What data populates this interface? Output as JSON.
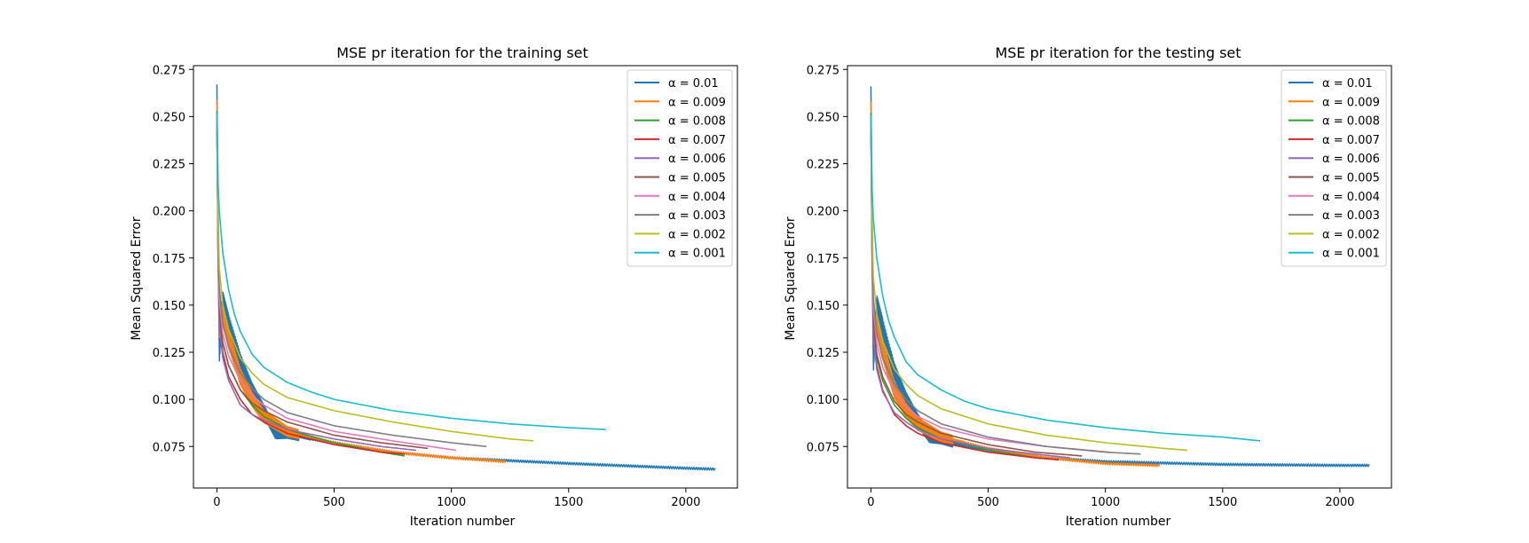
{
  "chart_data": [
    {
      "type": "line",
      "title": "MSE pr iteration for the training set",
      "xlabel": "Iteration number",
      "ylabel": "Mean Squared Error",
      "xlim": [
        -100,
        2220
      ],
      "ylim": [
        0.053,
        0.277
      ],
      "xticks": [
        0,
        500,
        1000,
        1500,
        2000
      ],
      "yticks": [
        0.075,
        0.1,
        0.125,
        0.15,
        0.175,
        0.2,
        0.225,
        0.25,
        0.275
      ],
      "grid": false,
      "legend_position": "top-right",
      "series": [
        {
          "name": "α = 0.01",
          "color": "#1f77b4",
          "oscillating": true,
          "x": [
            0,
            5,
            10,
            25,
            50,
            75,
            100,
            150,
            200,
            250,
            300,
            400,
            500,
            750,
            1000,
            1500,
            2000,
            2125
          ],
          "y": [
            0.267,
            0.205,
            0.124,
            0.152,
            0.14,
            0.13,
            0.12,
            0.105,
            0.094,
            0.082,
            0.082,
            0.079,
            0.077,
            0.072,
            0.069,
            0.066,
            0.0635,
            0.063
          ]
        },
        {
          "name": "α = 0.009",
          "color": "#ff7f0e",
          "oscillating": true,
          "x": [
            0,
            5,
            10,
            25,
            50,
            100,
            150,
            200,
            300,
            500,
            750,
            1000,
            1230
          ],
          "y": [
            0.259,
            0.19,
            0.138,
            0.145,
            0.132,
            0.112,
            0.1,
            0.091,
            0.083,
            0.077,
            0.072,
            0.069,
            0.067
          ]
        },
        {
          "name": "α = 0.008",
          "color": "#2ca02c",
          "oscillating": false,
          "x": [
            0,
            5,
            10,
            25,
            50,
            100,
            150,
            200,
            300,
            500,
            700,
            800
          ],
          "y": [
            0.253,
            0.18,
            0.145,
            0.13,
            0.118,
            0.105,
            0.097,
            0.091,
            0.084,
            0.077,
            0.072,
            0.07
          ]
        },
        {
          "name": "α = 0.007",
          "color": "#d62728",
          "oscillating": false,
          "x": [
            0,
            5,
            10,
            25,
            50,
            100,
            150,
            200,
            300,
            500,
            700,
            800
          ],
          "y": [
            0.25,
            0.178,
            0.142,
            0.125,
            0.112,
            0.1,
            0.092,
            0.088,
            0.082,
            0.076,
            0.072,
            0.071
          ]
        },
        {
          "name": "α = 0.006",
          "color": "#9467bd",
          "oscillating": false,
          "x": [
            0,
            5,
            10,
            25,
            50,
            100,
            150,
            200,
            300,
            500,
            700,
            850
          ],
          "y": [
            0.248,
            0.176,
            0.14,
            0.122,
            0.11,
            0.097,
            0.092,
            0.089,
            0.084,
            0.079,
            0.075,
            0.073
          ]
        },
        {
          "name": "α = 0.005",
          "color": "#8c564b",
          "oscillating": false,
          "x": [
            0,
            5,
            10,
            25,
            50,
            100,
            150,
            200,
            300,
            500,
            700,
            900
          ],
          "y": [
            0.248,
            0.182,
            0.147,
            0.13,
            0.118,
            0.105,
            0.098,
            0.094,
            0.088,
            0.081,
            0.077,
            0.074
          ]
        },
        {
          "name": "α = 0.004",
          "color": "#e377c2",
          "oscillating": false,
          "x": [
            0,
            5,
            10,
            25,
            50,
            100,
            150,
            200,
            300,
            500,
            750,
            1020
          ],
          "y": [
            0.249,
            0.186,
            0.153,
            0.135,
            0.123,
            0.11,
            0.102,
            0.097,
            0.09,
            0.083,
            0.078,
            0.073
          ]
        },
        {
          "name": "α = 0.003",
          "color": "#7f7f7f",
          "oscillating": false,
          "x": [
            0,
            5,
            10,
            25,
            50,
            100,
            150,
            200,
            300,
            500,
            750,
            1000,
            1150
          ],
          "y": [
            0.25,
            0.19,
            0.16,
            0.14,
            0.128,
            0.114,
            0.106,
            0.1,
            0.093,
            0.086,
            0.081,
            0.077,
            0.075
          ]
        },
        {
          "name": "α = 0.002",
          "color": "#bcbd22",
          "oscillating": false,
          "x": [
            0,
            5,
            10,
            25,
            50,
            100,
            150,
            200,
            300,
            500,
            750,
            1000,
            1250,
            1350
          ],
          "y": [
            0.251,
            0.198,
            0.17,
            0.15,
            0.137,
            0.122,
            0.114,
            0.108,
            0.101,
            0.094,
            0.088,
            0.083,
            0.079,
            0.078
          ]
        },
        {
          "name": "α = 0.001",
          "color": "#17becf",
          "oscillating": false,
          "x": [
            0,
            5,
            10,
            25,
            50,
            75,
            100,
            150,
            200,
            300,
            400,
            500,
            750,
            1000,
            1250,
            1500,
            1660
          ],
          "y": [
            0.252,
            0.215,
            0.2,
            0.178,
            0.158,
            0.145,
            0.136,
            0.124,
            0.117,
            0.109,
            0.104,
            0.1,
            0.094,
            0.09,
            0.087,
            0.085,
            0.084
          ]
        }
      ]
    },
    {
      "type": "line",
      "title": "MSE pr iteration for the testing set",
      "xlabel": "Iteration number",
      "ylabel": "Mean Squared Error",
      "xlim": [
        -100,
        2220
      ],
      "ylim": [
        0.053,
        0.277
      ],
      "xticks": [
        0,
        500,
        1000,
        1500,
        2000
      ],
      "yticks": [
        0.075,
        0.1,
        0.125,
        0.15,
        0.175,
        0.2,
        0.225,
        0.25,
        0.275
      ],
      "grid": false,
      "legend_position": "top-right",
      "series": [
        {
          "name": "α = 0.01",
          "color": "#1f77b4",
          "oscillating": true,
          "x": [
            0,
            5,
            10,
            25,
            50,
            75,
            100,
            150,
            200,
            250,
            300,
            400,
            500,
            750,
            1000,
            1500,
            2000,
            2125
          ],
          "y": [
            0.266,
            0.2,
            0.119,
            0.15,
            0.138,
            0.126,
            0.115,
            0.1,
            0.089,
            0.08,
            0.079,
            0.075,
            0.073,
            0.069,
            0.067,
            0.0655,
            0.065,
            0.065
          ]
        },
        {
          "name": "α = 0.009",
          "color": "#ff7f0e",
          "oscillating": true,
          "x": [
            0,
            5,
            10,
            25,
            50,
            100,
            150,
            200,
            300,
            500,
            750,
            1000,
            1230
          ],
          "y": [
            0.258,
            0.185,
            0.135,
            0.14,
            0.126,
            0.105,
            0.094,
            0.087,
            0.08,
            0.074,
            0.069,
            0.066,
            0.065
          ]
        },
        {
          "name": "α = 0.008",
          "color": "#2ca02c",
          "oscillating": false,
          "x": [
            0,
            5,
            10,
            25,
            50,
            100,
            150,
            200,
            300,
            500,
            700,
            800
          ],
          "y": [
            0.252,
            0.178,
            0.14,
            0.122,
            0.11,
            0.097,
            0.09,
            0.085,
            0.079,
            0.073,
            0.069,
            0.068
          ]
        },
        {
          "name": "α = 0.007",
          "color": "#d62728",
          "oscillating": false,
          "x": [
            0,
            5,
            10,
            25,
            50,
            100,
            150,
            200,
            300,
            500,
            700,
            800
          ],
          "y": [
            0.249,
            0.175,
            0.136,
            0.118,
            0.105,
            0.092,
            0.086,
            0.082,
            0.077,
            0.072,
            0.069,
            0.068
          ]
        },
        {
          "name": "α = 0.006",
          "color": "#9467bd",
          "oscillating": false,
          "x": [
            0,
            5,
            10,
            25,
            50,
            100,
            150,
            200,
            300,
            500,
            700,
            850
          ],
          "y": [
            0.247,
            0.172,
            0.134,
            0.116,
            0.104,
            0.093,
            0.088,
            0.084,
            0.079,
            0.074,
            0.071,
            0.069
          ]
        },
        {
          "name": "α = 0.005",
          "color": "#8c564b",
          "oscillating": false,
          "x": [
            0,
            5,
            10,
            25,
            50,
            100,
            150,
            200,
            300,
            500,
            700,
            900
          ],
          "y": [
            0.247,
            0.178,
            0.142,
            0.124,
            0.112,
            0.099,
            0.092,
            0.088,
            0.082,
            0.076,
            0.072,
            0.07
          ]
        },
        {
          "name": "α = 0.004",
          "color": "#e377c2",
          "oscillating": false,
          "x": [
            0,
            5,
            10,
            25,
            50,
            100,
            150,
            200,
            300,
            500,
            750,
            1020
          ],
          "y": [
            0.248,
            0.182,
            0.148,
            0.13,
            0.117,
            0.104,
            0.096,
            0.091,
            0.085,
            0.079,
            0.075,
            0.072
          ]
        },
        {
          "name": "α = 0.003",
          "color": "#7f7f7f",
          "oscillating": false,
          "x": [
            0,
            5,
            10,
            25,
            50,
            100,
            150,
            200,
            300,
            500,
            750,
            1000,
            1150
          ],
          "y": [
            0.249,
            0.186,
            0.154,
            0.135,
            0.122,
            0.108,
            0.1,
            0.094,
            0.087,
            0.08,
            0.075,
            0.072,
            0.071
          ]
        },
        {
          "name": "α = 0.002",
          "color": "#bcbd22",
          "oscillating": false,
          "x": [
            0,
            5,
            10,
            25,
            50,
            100,
            150,
            200,
            300,
            500,
            750,
            1000,
            1250,
            1350
          ],
          "y": [
            0.25,
            0.195,
            0.165,
            0.145,
            0.131,
            0.116,
            0.108,
            0.102,
            0.095,
            0.087,
            0.081,
            0.077,
            0.074,
            0.073
          ]
        },
        {
          "name": "α = 0.001",
          "color": "#17becf",
          "oscillating": false,
          "x": [
            0,
            5,
            10,
            25,
            50,
            75,
            100,
            150,
            200,
            300,
            400,
            500,
            750,
            1000,
            1250,
            1500,
            1660
          ],
          "y": [
            0.251,
            0.212,
            0.196,
            0.175,
            0.155,
            0.142,
            0.133,
            0.12,
            0.113,
            0.105,
            0.099,
            0.095,
            0.089,
            0.085,
            0.082,
            0.08,
            0.078
          ]
        }
      ]
    }
  ]
}
